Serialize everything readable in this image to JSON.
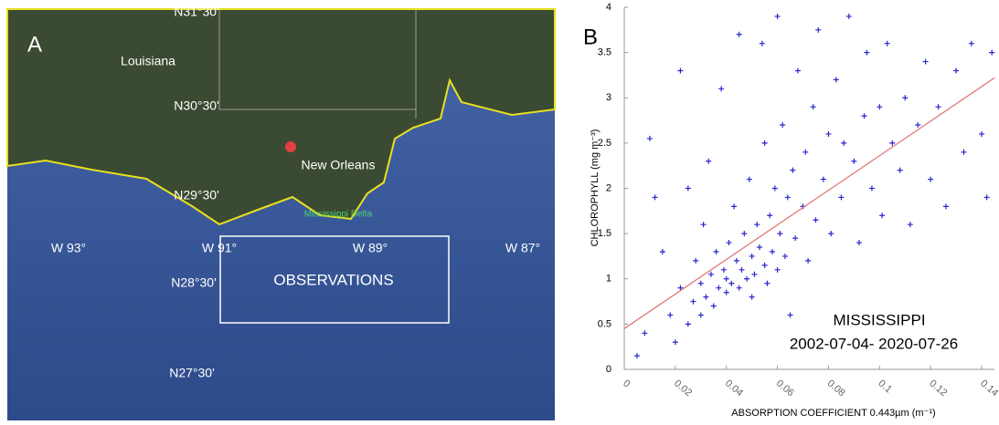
{
  "map": {
    "panel_label": "A",
    "latitudes": [
      "N31°30'",
      "N30°30'",
      "N29°30'",
      "N28°30'",
      "N27°30'"
    ],
    "longitudes": [
      "W 93°",
      "W 91°",
      "W 89°",
      "W 87°"
    ],
    "places": [
      "Louisiana",
      "New Orleans",
      "Mississippi Delta"
    ],
    "box_label": "OBSERVATIONS"
  },
  "chart_data": {
    "type": "scatter",
    "panel_label": "B",
    "xlabel": "ABSORPTION COEFFICIENT 0.443µm (m⁻¹)",
    "ylabel": "CHLOROPHYLL (mg m⁻³)",
    "annotations": [
      "MISSISSIPPI",
      "2002-07-04- 2020-07-26"
    ],
    "xlim": [
      0,
      0.145
    ],
    "ylim": [
      0,
      4
    ],
    "xticks": [
      0,
      0.02,
      0.04,
      0.06,
      0.08,
      0.1,
      0.12,
      0.14
    ],
    "yticks": [
      0,
      0.5,
      1,
      1.5,
      2,
      2.5,
      3,
      3.5,
      4
    ],
    "color": "#2626d0",
    "x": [
      0.005,
      0.008,
      0.01,
      0.012,
      0.015,
      0.018,
      0.02,
      0.022,
      0.022,
      0.025,
      0.025,
      0.027,
      0.028,
      0.03,
      0.03,
      0.031,
      0.032,
      0.033,
      0.034,
      0.035,
      0.036,
      0.037,
      0.038,
      0.039,
      0.04,
      0.04,
      0.041,
      0.042,
      0.043,
      0.044,
      0.045,
      0.045,
      0.046,
      0.047,
      0.048,
      0.049,
      0.05,
      0.05,
      0.051,
      0.052,
      0.053,
      0.054,
      0.055,
      0.055,
      0.056,
      0.057,
      0.058,
      0.059,
      0.06,
      0.06,
      0.061,
      0.062,
      0.063,
      0.064,
      0.065,
      0.066,
      0.067,
      0.068,
      0.07,
      0.071,
      0.072,
      0.074,
      0.075,
      0.076,
      0.078,
      0.08,
      0.081,
      0.083,
      0.085,
      0.086,
      0.088,
      0.09,
      0.092,
      0.094,
      0.095,
      0.097,
      0.1,
      0.101,
      0.103,
      0.105,
      0.108,
      0.11,
      0.112,
      0.115,
      0.118,
      0.12,
      0.123,
      0.126,
      0.13,
      0.133,
      0.136,
      0.14,
      0.142,
      0.144
    ],
    "values": [
      0.15,
      0.4,
      2.55,
      1.9,
      1.3,
      0.6,
      0.3,
      3.3,
      0.9,
      0.5,
      2.0,
      0.75,
      1.2,
      0.6,
      0.95,
      1.6,
      0.8,
      2.3,
      1.05,
      0.7,
      1.3,
      0.9,
      3.1,
      1.1,
      0.85,
      1.0,
      1.4,
      0.95,
      1.8,
      1.2,
      3.7,
      0.9,
      1.1,
      1.5,
      1.0,
      2.1,
      1.25,
      0.8,
      1.05,
      1.6,
      1.35,
      3.6,
      1.15,
      2.5,
      0.95,
      1.7,
      1.3,
      2.0,
      1.1,
      3.9,
      1.5,
      2.7,
      1.25,
      1.9,
      0.6,
      2.2,
      1.45,
      3.3,
      1.8,
      2.4,
      1.2,
      2.9,
      1.65,
      3.75,
      2.1,
      2.6,
      1.5,
      3.2,
      1.9,
      2.5,
      3.9,
      2.3,
      1.4,
      2.8,
      3.5,
      2.0,
      2.9,
      1.7,
      3.6,
      2.5,
      2.2,
      3.0,
      1.6,
      2.7,
      3.4,
      2.1,
      2.9,
      1.8,
      3.3,
      2.4,
      3.6,
      2.6,
      1.9,
      3.5
    ],
    "trend_line": {
      "x": [
        0,
        0.145
      ],
      "values": [
        0.45,
        3.22
      ],
      "color": "#e07a7a"
    }
  }
}
